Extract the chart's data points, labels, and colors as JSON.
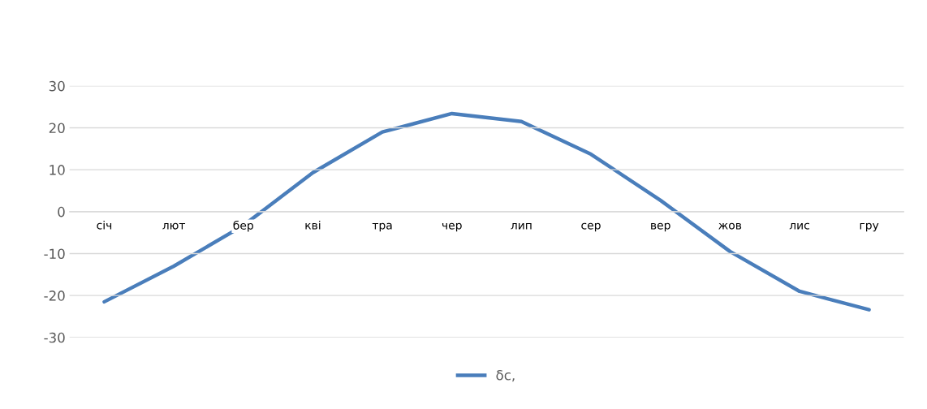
{
  "chart_data": {
    "type": "line",
    "categories": [
      "січ",
      "лют",
      "бер",
      "кві",
      "тра",
      "чер",
      "лип",
      "сер",
      "вер",
      "жов",
      "лис",
      "гру"
    ],
    "series": [
      {
        "name": "δc,",
        "color": "#4a7ebb",
        "values": [
          -21.5,
          -13,
          -3.3,
          9.3,
          19,
          23.4,
          21.5,
          13.7,
          2.7,
          -9.5,
          -19,
          -23.4
        ]
      }
    ],
    "ylim": [
      -30,
      30
    ],
    "yticks": [
      -30,
      -20,
      -10,
      0,
      10,
      20,
      30
    ],
    "grid": "y",
    "legend": "bottom",
    "marker": "none",
    "line_style": "solid"
  }
}
